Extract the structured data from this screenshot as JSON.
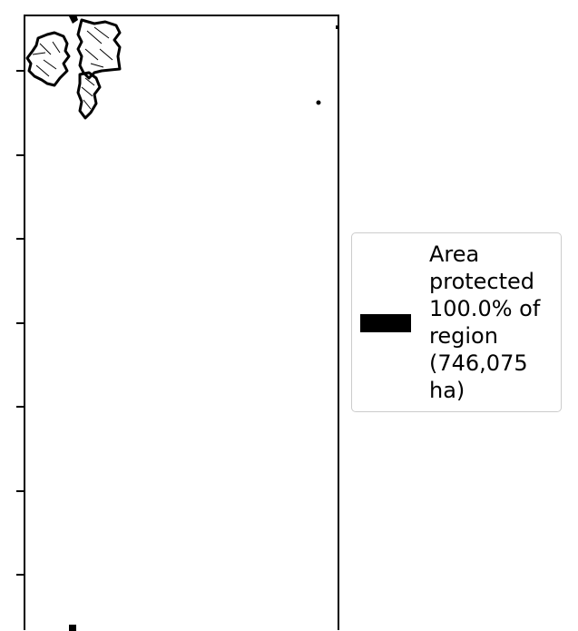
{
  "map": {
    "fill_color": "#000000",
    "frame_color": "#000000"
  },
  "legend": {
    "swatch_color": "#000000",
    "label": "Area\nprotected\n100.0% of\nregion\n(746,075\nha)"
  }
}
